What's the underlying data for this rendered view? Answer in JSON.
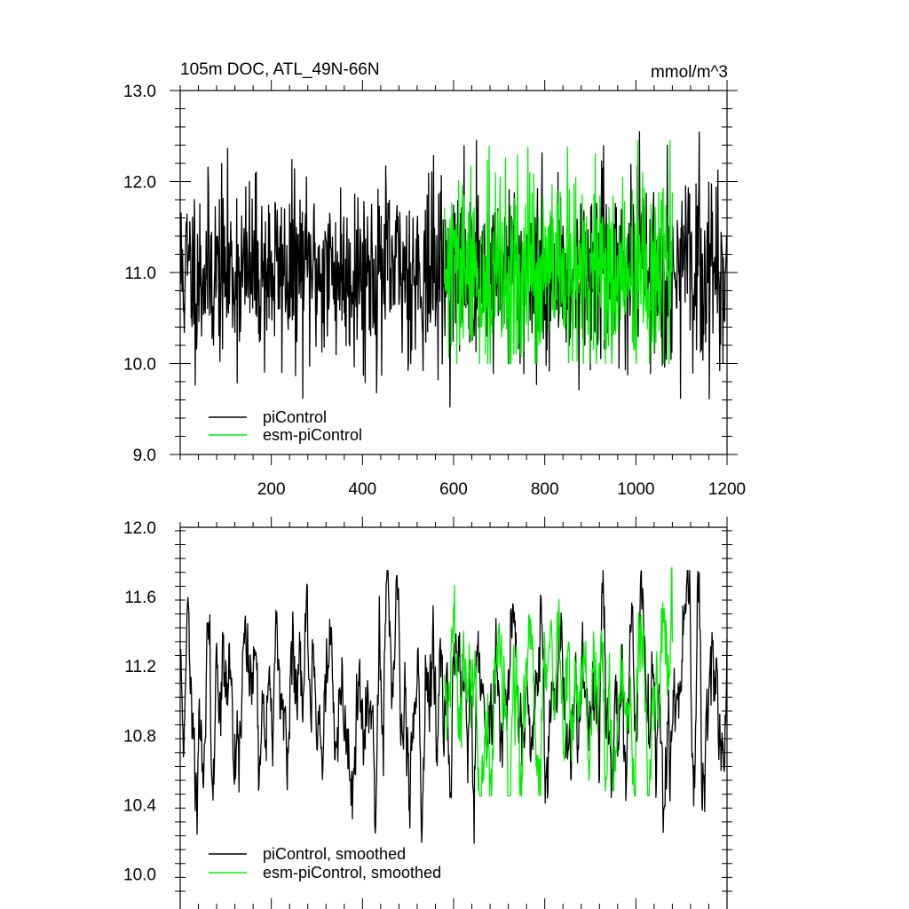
{
  "colors": {
    "piControl": "#000000",
    "esm": "#00ee00"
  },
  "chart_data": [
    {
      "type": "line",
      "title": "105m DOC, ATL_49N-66N",
      "units": "mmol/m^3",
      "xlim": [
        0,
        1200
      ],
      "ylim": [
        9.0,
        13.0
      ],
      "xticks": [
        200,
        400,
        600,
        800,
        1000,
        1200
      ],
      "xtick_labels": [
        "200",
        "400",
        "600",
        "800",
        "1000",
        "1200"
      ],
      "yticks": [
        9.0,
        10.0,
        11.0,
        12.0,
        13.0
      ],
      "ytick_labels": [
        "9.0",
        "10.0",
        "11.0",
        "12.0",
        "13.0"
      ],
      "legend_position": "bottom-left",
      "series": [
        {
          "name": "piControl",
          "x_range": [
            1,
            1200
          ],
          "mean": 11.0,
          "sd": 0.5,
          "min": 9.4,
          "max": 12.63,
          "seed": 11
        },
        {
          "name": "esm-piControl",
          "x_range": [
            580,
            1080
          ],
          "mean": 11.0,
          "sd": 0.55,
          "min": 10.0,
          "max": 12.45,
          "seed": 29
        }
      ]
    },
    {
      "type": "line",
      "title": "",
      "xlim": [
        0,
        1200
      ],
      "ylim": [
        9.9,
        12.0
      ],
      "xticks": [
        200,
        400,
        600,
        800,
        1000,
        1200
      ],
      "xtick_labels": [],
      "yticks": [
        10.0,
        10.4,
        10.8,
        11.2,
        11.6,
        12.0
      ],
      "ytick_labels": [
        "10.0",
        "10.4",
        "10.8",
        "11.2",
        "11.6",
        "12.0"
      ],
      "legend_position": "bottom-left",
      "series": [
        {
          "name": "piControl, smoothed",
          "x_range": [
            1,
            1200
          ],
          "mean": 11.0,
          "sd": 0.3,
          "min": 9.92,
          "max": 11.75,
          "seed": 11
        },
        {
          "name": "esm-piControl, smoothed",
          "x_range": [
            580,
            1080
          ],
          "mean": 11.0,
          "sd": 0.3,
          "min": 10.45,
          "max": 11.8,
          "seed": 29
        }
      ]
    }
  ]
}
